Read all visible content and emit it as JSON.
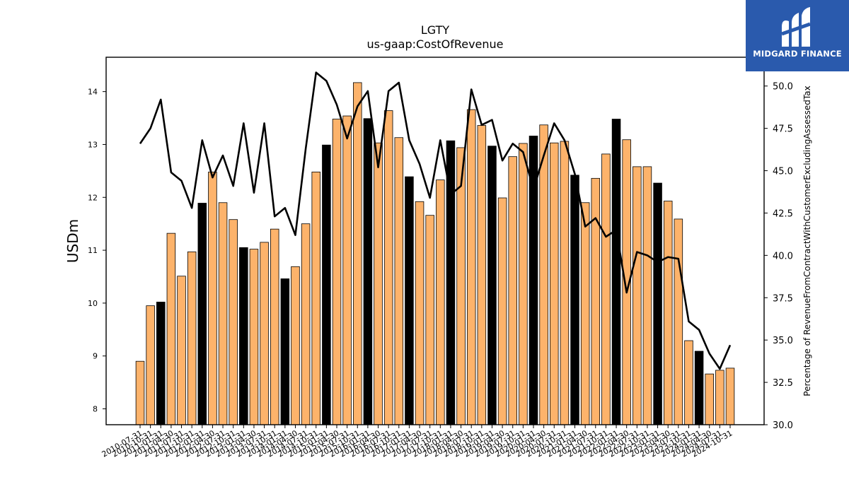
{
  "chart_data": {
    "type": "bar",
    "title": "LGTY",
    "subtitle": "us-gaap:CostOfRevenue",
    "ylabel": "USDm",
    "y2label": "Percentage of RevenueFromContractWithCustomerExcludingAssessedTax",
    "ylim": [
      7.7,
      14.65
    ],
    "y2lim": [
      30.0,
      51.7
    ],
    "yticks": [
      8,
      9,
      10,
      11,
      12,
      13,
      14
    ],
    "y2ticks": [
      30.0,
      32.5,
      35.0,
      37.5,
      40.0,
      42.5,
      45.0,
      47.5,
      50.0
    ],
    "highlight_color": "#000000",
    "bar_color": "#fdb36b",
    "line_color": "#000000",
    "categories": [
      "2010-07-31",
      "2010-10-31",
      "2011-01-31",
      "2011-04-30",
      "2011-07-31",
      "2011-10-31",
      "2012-01-31",
      "2012-04-30",
      "2012-07-31",
      "2012-10-31",
      "2013-01-31",
      "2013-04-30",
      "2013-07-31",
      "2013-10-31",
      "2014-01-31",
      "2014-04-30",
      "2014-07-31",
      "2014-10-31",
      "2015-01-31",
      "2015-04-30",
      "2015-07-31",
      "2015-10-31",
      "2016-01-31",
      "2016-04-30",
      "2016-07-31",
      "2016-10-31",
      "2017-01-31",
      "2017-04-30",
      "2017-07-31",
      "2017-10-31",
      "2018-01-31",
      "2018-04-30",
      "2018-07-31",
      "2018-10-31",
      "2019-01-31",
      "2019-04-30",
      "2019-07-31",
      "2019-10-31",
      "2020-01-31",
      "2020-04-30",
      "2020-07-31",
      "2020-10-31",
      "2021-01-31",
      "2021-04-30",
      "2021-07-31",
      "2021-10-31",
      "2022-01-31",
      "2022-04-30",
      "2022-07-31",
      "2022-10-31",
      "2023-01-31",
      "2023-04-30",
      "2023-07-31",
      "2023-10-31",
      "2024-01-31",
      "2024-04-30",
      "2024-07-31",
      "2024-10-31"
    ],
    "xtick_labels": [
      "2010-07-31",
      "2010-10-31",
      "2011-01-31",
      "2011-04-30",
      "2011-07-31",
      "2011-10-31",
      "2012-01-31",
      "2012-04-30",
      "2012-07-31",
      "2012-10-31",
      "2013-01-31",
      "2013-04-30",
      "2013-07-31",
      "2013-10-31",
      "2014-01-31",
      "2014-04-30",
      "2014-07-31",
      "2014-10-31",
      "2015-01-31",
      "2015-04-30",
      "2015-07-31",
      "2015-10-31",
      "2016-01-31",
      "2016-04-30",
      "2016-07-31",
      "2016-10-31",
      "2017-01-31",
      "2017-04-30",
      "2017-07-31",
      "2017-10-31",
      "2018-01-31",
      "2018-04-30",
      "2018-07-31",
      "2018-10-31",
      "2019-01-31",
      "2019-04-30",
      "2019-07-31",
      "2019-10-31",
      "2020-01-31",
      "2020-04-30",
      "2020-07-31",
      "2020-10-31",
      "2021-01-31",
      "2021-04-30",
      "2021-07-31",
      "2021-10-31",
      "2022-01-31",
      "2022-04-30",
      "2022-07-31",
      "2022-10-31",
      "2023-01-31",
      "2023-04-30",
      "2023-07-31",
      "2023-10-31",
      "2024-01-31",
      "2024-04-30",
      "2024-07-31",
      "2024-10-31"
    ],
    "series": [
      {
        "type": "bar",
        "values": [
          8.9,
          9.95,
          10.02,
          11.32,
          10.51,
          10.97,
          11.89,
          12.48,
          11.9,
          11.58,
          11.05,
          11.02,
          11.15,
          11.4,
          10.46,
          10.69,
          11.5,
          12.48,
          12.99,
          13.48,
          13.54,
          14.17,
          13.49,
          13.03,
          13.64,
          13.13,
          12.39,
          11.92,
          11.66,
          12.33,
          13.07,
          12.94,
          13.66,
          13.36,
          12.97,
          11.99,
          12.77,
          13.02,
          13.16,
          13.37,
          13.03,
          13.06,
          12.42,
          11.9,
          12.36,
          12.82,
          13.48,
          13.09,
          12.58,
          12.58,
          12.27,
          11.93,
          11.59,
          9.29,
          9.09,
          8.66,
          8.73,
          8.77
        ],
        "highlight": [
          false,
          false,
          true,
          false,
          false,
          false,
          true,
          false,
          false,
          false,
          true,
          false,
          false,
          false,
          true,
          false,
          false,
          false,
          true,
          false,
          false,
          false,
          true,
          false,
          false,
          false,
          true,
          false,
          false,
          false,
          true,
          false,
          false,
          false,
          true,
          false,
          false,
          false,
          true,
          false,
          false,
          false,
          true,
          false,
          false,
          false,
          true,
          false,
          false,
          false,
          true,
          false,
          false,
          false,
          true,
          false,
          false,
          false
        ]
      },
      {
        "type": "line",
        "axis": "right",
        "values": [
          46.6,
          47.5,
          49.2,
          44.9,
          44.4,
          42.8,
          46.8,
          44.6,
          45.9,
          44.1,
          47.8,
          43.7,
          47.8,
          42.3,
          42.8,
          41.2,
          46.3,
          50.8,
          50.3,
          48.9,
          46.9,
          48.8,
          49.7,
          45.2,
          49.7,
          50.2,
          46.8,
          45.4,
          43.4,
          46.8,
          43.6,
          44.1,
          49.8,
          47.7,
          48.0,
          45.6,
          46.6,
          46.1,
          43.9,
          45.9,
          47.8,
          46.8,
          44.8,
          41.7,
          42.2,
          41.1,
          41.5,
          37.8,
          40.2,
          40.0,
          39.6,
          39.9,
          39.8,
          36.1,
          35.6,
          34.2,
          33.3,
          34.7
        ]
      }
    ]
  },
  "logo": {
    "text": "MIDGARD FINANCE"
  }
}
